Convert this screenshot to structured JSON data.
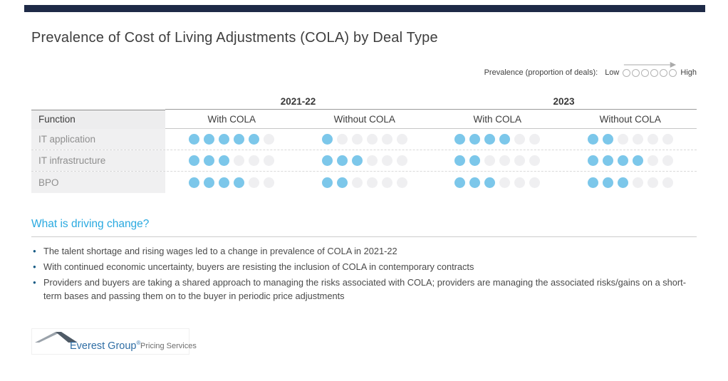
{
  "slide": {
    "title": "Prevalence of Cost of Living Adjustments (COLA) by Deal Type"
  },
  "legend": {
    "label": "Prevalence (proportion of deals):",
    "low": "Low",
    "high": "High",
    "circle_count": 6
  },
  "table": {
    "function_header": "Function",
    "groups": [
      {
        "label": "2021-22",
        "columns": [
          "With COLA",
          "Without COLA"
        ]
      },
      {
        "label": "2023",
        "columns": [
          "With COLA",
          "Without COLA"
        ]
      }
    ],
    "dots_per_cell": 6,
    "rows": [
      {
        "label": "IT application",
        "values": [
          5,
          1,
          4,
          2
        ]
      },
      {
        "label": "IT infrastructure",
        "values": [
          3,
          3,
          2,
          4
        ]
      },
      {
        "label": "BPO",
        "values": [
          4,
          2,
          3,
          3
        ]
      }
    ]
  },
  "insights": {
    "heading": "What is driving change?",
    "bullets": [
      "The talent shortage and rising wages led to a change in prevalence of COLA in 2021-22",
      "With continued economic uncertainty, buyers are resisting the inclusion of COLA in contemporary contracts",
      "Providers and buyers are taking a shared approach to managing the risks associated with COLA; providers are managing the associated risks/gains on a short-term bases and passing them on to the buyer in periodic price adjustments"
    ]
  },
  "footer": {
    "brand": "Everest Group",
    "registered": "®",
    "tagline": "Pricing Services"
  },
  "colors": {
    "top_bar": "#1e2a47",
    "filled_dot": "#7cc7ea",
    "empty_dot": "#efeff1",
    "heading_blue": "#29a9e0",
    "brand_blue": "#2e6da4"
  },
  "chart_data": {
    "type": "table",
    "title": "Prevalence of Cost of Living Adjustments (COLA) by Deal Type",
    "legend": "Prevalence (proportion of deals): Low to High",
    "scale": {
      "min": 0,
      "max": 6,
      "units": "filled dots out of 6 (relative prevalence)"
    },
    "categories": [
      "IT application",
      "IT infrastructure",
      "BPO"
    ],
    "series": [
      {
        "name": "2021-22 With COLA",
        "values": [
          5,
          3,
          4
        ]
      },
      {
        "name": "2021-22 Without COLA",
        "values": [
          1,
          3,
          2
        ]
      },
      {
        "name": "2023 With COLA",
        "values": [
          4,
          2,
          3
        ]
      },
      {
        "name": "2023 Without COLA",
        "values": [
          2,
          4,
          3
        ]
      }
    ]
  }
}
